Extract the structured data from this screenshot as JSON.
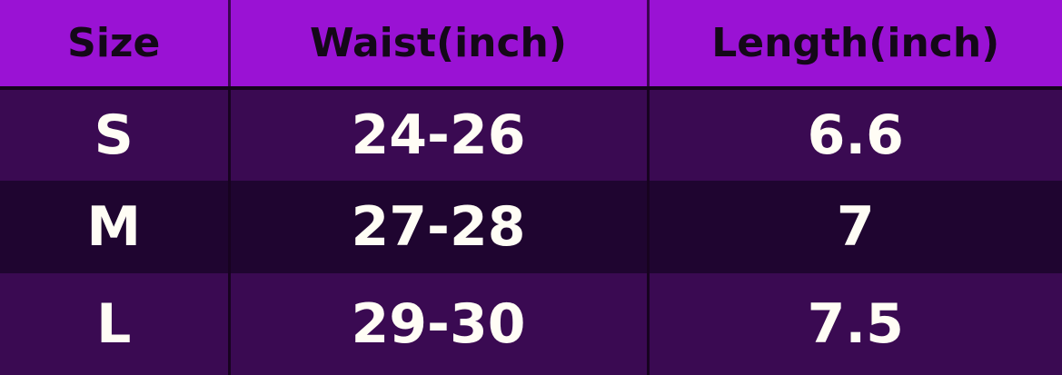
{
  "table": {
    "headers": [
      "Size",
      "Waist(inch)",
      "Length(inch)"
    ],
    "rows": [
      [
        "S",
        "24-26",
        "6.6"
      ],
      [
        "M",
        "27-28",
        "7"
      ],
      [
        "L",
        "29-30",
        "7.5"
      ]
    ]
  },
  "colors": {
    "header_bg": "#9a12d4",
    "row_bg": "#3a0a52",
    "row_alt_bg": "#1f0530",
    "header_text": "#140818",
    "cell_text": "#fffdf5"
  }
}
